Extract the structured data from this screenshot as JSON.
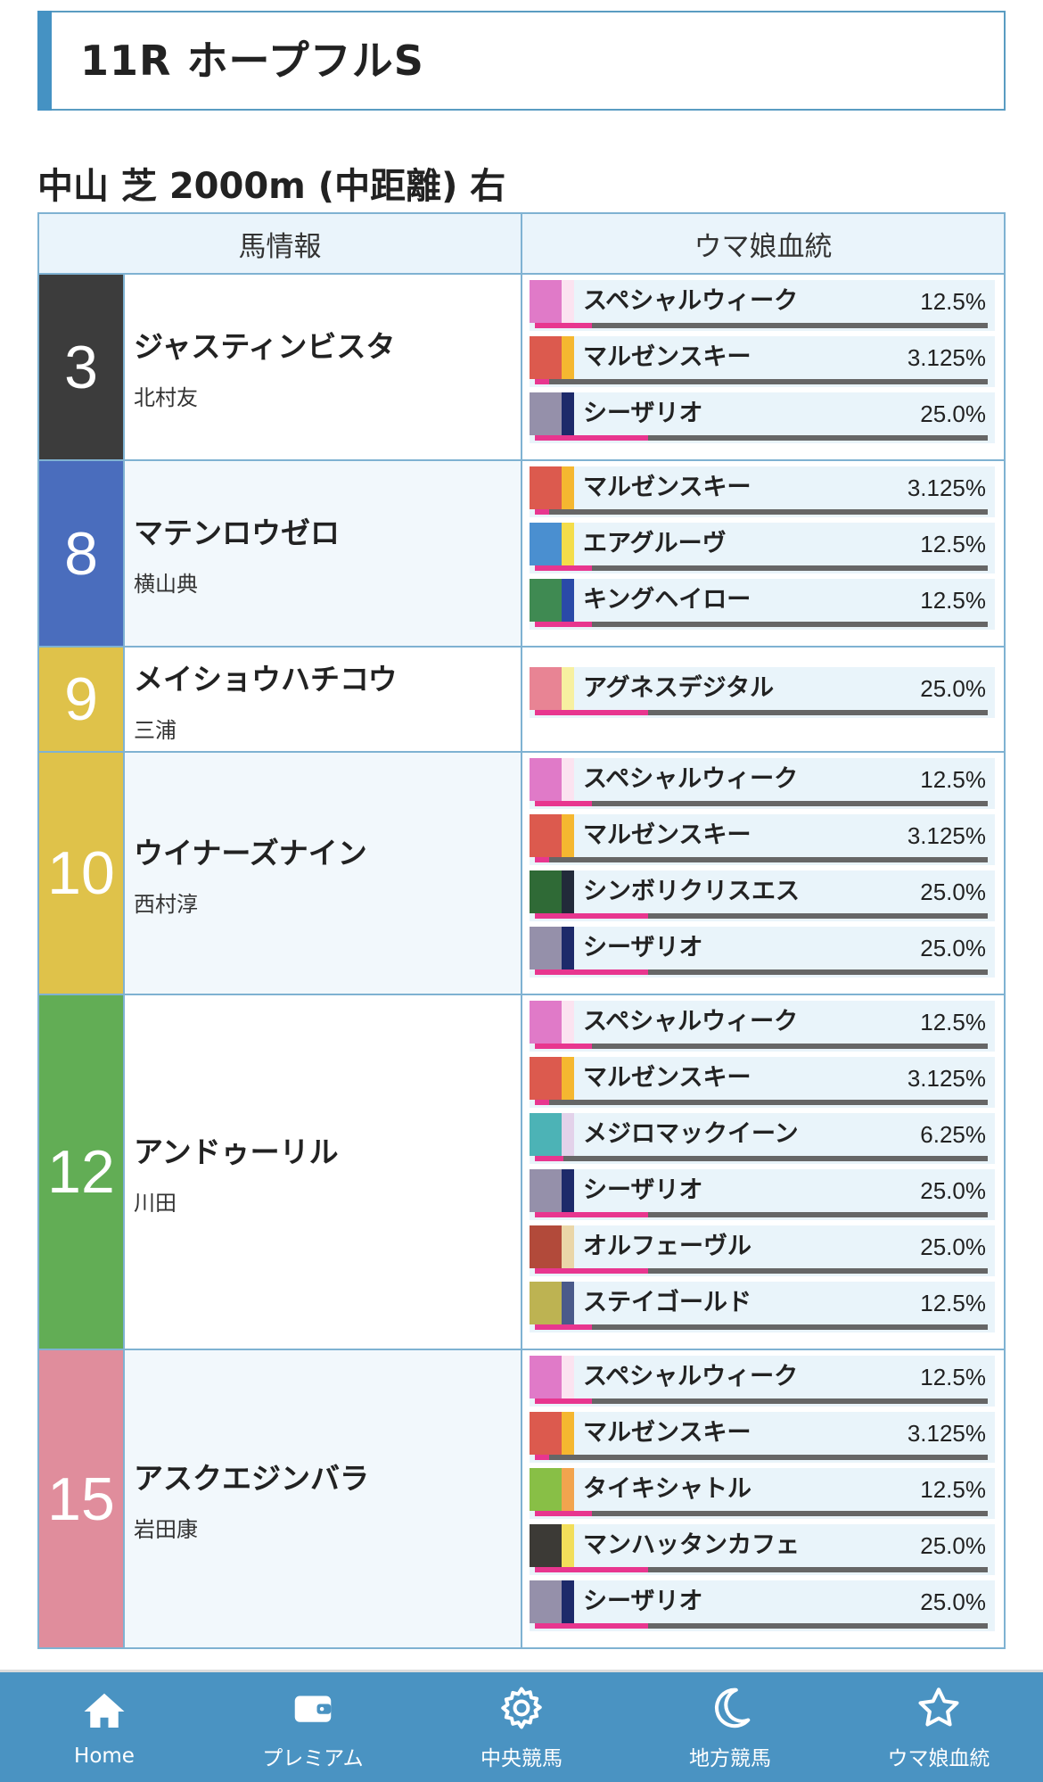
{
  "race": {
    "title": "11R ホープフルS",
    "course": "中山 芝 2000m (中距離) 右"
  },
  "table": {
    "col_horse": "馬情報",
    "col_blood": "ウマ娘血統"
  },
  "horses": [
    {
      "num": "3",
      "num_bg": "#3c3c3c",
      "num_fg": "#ffffff",
      "name": "ジャスティンビスタ",
      "jockey": "北村友",
      "info_bg": "plain",
      "blood": [
        {
          "name": "スペシャルウィーク",
          "pct": "12.5%",
          "ratio": 0.125,
          "c1": "#e07ac8",
          "c2": "#fbe3f0"
        },
        {
          "name": "マルゼンスキー",
          "pct": "3.125%",
          "ratio": 0.03125,
          "c1": "#dc5a4e",
          "c2": "#f5b730"
        },
        {
          "name": "シーザリオ",
          "pct": "25.0%",
          "ratio": 0.25,
          "c1": "#9590aa",
          "c2": "#1d2a6a"
        }
      ]
    },
    {
      "num": "8",
      "num_bg": "#4a6dbd",
      "num_fg": "#ffffff",
      "name": "マテンロウゼロ",
      "jockey": "横山典",
      "info_bg": "alt",
      "blood": [
        {
          "name": "マルゼンスキー",
          "pct": "3.125%",
          "ratio": 0.03125,
          "c1": "#dc5a4e",
          "c2": "#f5b730"
        },
        {
          "name": "エアグルーヴ",
          "pct": "12.5%",
          "ratio": 0.125,
          "c1": "#4a8fd0",
          "c2": "#f4dd4a"
        },
        {
          "name": "キングヘイロー",
          "pct": "12.5%",
          "ratio": 0.125,
          "c1": "#3f8a52",
          "c2": "#2a4aa8"
        }
      ]
    },
    {
      "num": "9",
      "num_bg": "#dfc24a",
      "num_fg": "#ffffff",
      "name": "メイショウハチコウ",
      "jockey": "三浦",
      "info_bg": "plain",
      "blood": [
        {
          "name": "アグネスデジタル",
          "pct": "25.0%",
          "ratio": 0.25,
          "c1": "#e88494",
          "c2": "#f7f0a0"
        }
      ]
    },
    {
      "num": "10",
      "num_bg": "#dfc24a",
      "num_fg": "#ffffff",
      "name": "ウイナーズナイン",
      "jockey": "西村淳",
      "info_bg": "alt",
      "blood": [
        {
          "name": "スペシャルウィーク",
          "pct": "12.5%",
          "ratio": 0.125,
          "c1": "#e07ac8",
          "c2": "#fbe3f0"
        },
        {
          "name": "マルゼンスキー",
          "pct": "3.125%",
          "ratio": 0.03125,
          "c1": "#dc5a4e",
          "c2": "#f5b730"
        },
        {
          "name": "シンボリクリスエス",
          "pct": "25.0%",
          "ratio": 0.25,
          "c1": "#2f6a36",
          "c2": "#222a3a"
        },
        {
          "name": "シーザリオ",
          "pct": "25.0%",
          "ratio": 0.25,
          "c1": "#9590aa",
          "c2": "#1d2a6a"
        }
      ]
    },
    {
      "num": "12",
      "num_bg": "#62ad55",
      "num_fg": "#ffffff",
      "name": "アンドゥーリル",
      "jockey": "川田",
      "info_bg": "plain",
      "blood": [
        {
          "name": "スペシャルウィーク",
          "pct": "12.5%",
          "ratio": 0.125,
          "c1": "#e07ac8",
          "c2": "#fbe3f0"
        },
        {
          "name": "マルゼンスキー",
          "pct": "3.125%",
          "ratio": 0.03125,
          "c1": "#dc5a4e",
          "c2": "#f5b730"
        },
        {
          "name": "メジロマックイーン",
          "pct": "6.25%",
          "ratio": 0.0625,
          "c1": "#4cb3b6",
          "c2": "#e3d2ea"
        },
        {
          "name": "シーザリオ",
          "pct": "25.0%",
          "ratio": 0.25,
          "c1": "#9590aa",
          "c2": "#1d2a6a"
        },
        {
          "name": "オルフェーヴル",
          "pct": "25.0%",
          "ratio": 0.25,
          "c1": "#b24a3a",
          "c2": "#ead6a8"
        },
        {
          "name": "ステイゴールド",
          "pct": "12.5%",
          "ratio": 0.125,
          "c1": "#bdb352",
          "c2": "#4a5a8a"
        }
      ]
    },
    {
      "num": "15",
      "num_bg": "#e08d9c",
      "num_fg": "#ffffff",
      "name": "アスクエジンバラ",
      "jockey": "岩田康",
      "info_bg": "alt",
      "blood": [
        {
          "name": "スペシャルウィーク",
          "pct": "12.5%",
          "ratio": 0.125,
          "c1": "#e07ac8",
          "c2": "#fbe3f0"
        },
        {
          "name": "マルゼンスキー",
          "pct": "3.125%",
          "ratio": 0.03125,
          "c1": "#dc5a4e",
          "c2": "#f5b730"
        },
        {
          "name": "タイキシャトル",
          "pct": "12.5%",
          "ratio": 0.125,
          "c1": "#88bf46",
          "c2": "#f2a44e"
        },
        {
          "name": "マンハッタンカフェ",
          "pct": "25.0%",
          "ratio": 0.25,
          "c1": "#3c3a36",
          "c2": "#f2de5a"
        },
        {
          "name": "シーザリオ",
          "pct": "25.0%",
          "ratio": 0.25,
          "c1": "#9590aa",
          "c2": "#1d2a6a"
        }
      ]
    }
  ],
  "nav": [
    {
      "label": "Home",
      "icon": "home-icon"
    },
    {
      "label": "プレミアム",
      "icon": "wallet-icon"
    },
    {
      "label": "中央競馬",
      "icon": "gear-icon"
    },
    {
      "label": "地方競馬",
      "icon": "moon-icon"
    },
    {
      "label": "ウマ娘血統",
      "icon": "star-icon"
    }
  ]
}
